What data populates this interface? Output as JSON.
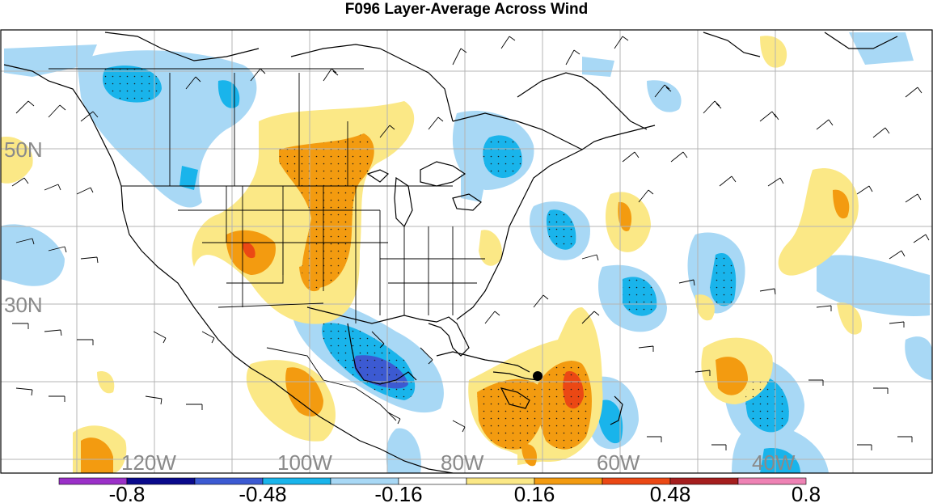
{
  "title": "F096 Layer-Average Across Wind",
  "latitude_labels": [
    "50N",
    "30N"
  ],
  "longitude_labels": [
    "120W",
    "100W",
    "80W",
    "60W",
    "40W"
  ],
  "colorbar": {
    "labels": [
      "-0.8",
      "-0.48",
      "-0.16",
      "0.16",
      "0.48",
      "0.8"
    ],
    "colors": [
      "#9b30c8",
      "#0a0a8c",
      "#3c5ad2",
      "#19b4eb",
      "#a8d8f5",
      "#ffffff",
      "#fbe886",
      "#f39b10",
      "#eb4814",
      "#a51e1e",
      "#ee82b4"
    ]
  },
  "map_colors": {
    "ocean_background": "#ffffff",
    "negative_light": "#a8d8f5",
    "negative_mid": "#19b4eb",
    "negative_strong": "#3c5ad2",
    "positive_light": "#fbe886",
    "positive_mid": "#f39b10",
    "positive_strong": "#eb4814",
    "coastline": "#000000",
    "gridline": "#b4b4b4"
  },
  "marker": "black-dot-marker"
}
